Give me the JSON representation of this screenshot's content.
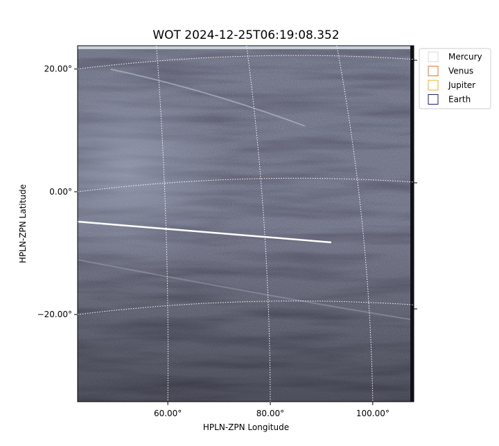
{
  "chart_data": {
    "type": "image",
    "title": "WOT 2024-12-25T06:19:08.352",
    "x_label": "HPLN-ZPN Longitude",
    "y_label": "HPLN-ZPN Latitude",
    "xlim": [
      42.4,
      108
    ],
    "ylim": [
      -34.2,
      23.8
    ],
    "xticks": [
      {
        "value": 60,
        "label": "60.00°"
      },
      {
        "value": 80,
        "label": "80.00°"
      },
      {
        "value": 100,
        "label": "100.00°"
      }
    ],
    "yticks": [
      {
        "value": 20,
        "label": "20.00°"
      },
      {
        "value": 0,
        "label": "0.00°"
      },
      {
        "value": -20,
        "label": "−20.00°"
      }
    ],
    "grid": true,
    "series": [
      {
        "name": "Mercury",
        "color": "#d8d8d8"
      },
      {
        "name": "Venus",
        "color": "#e0762c"
      },
      {
        "name": "Jupiter",
        "color": "#e8b020"
      },
      {
        "name": "Earth",
        "color": "#1c1c7a"
      }
    ]
  }
}
